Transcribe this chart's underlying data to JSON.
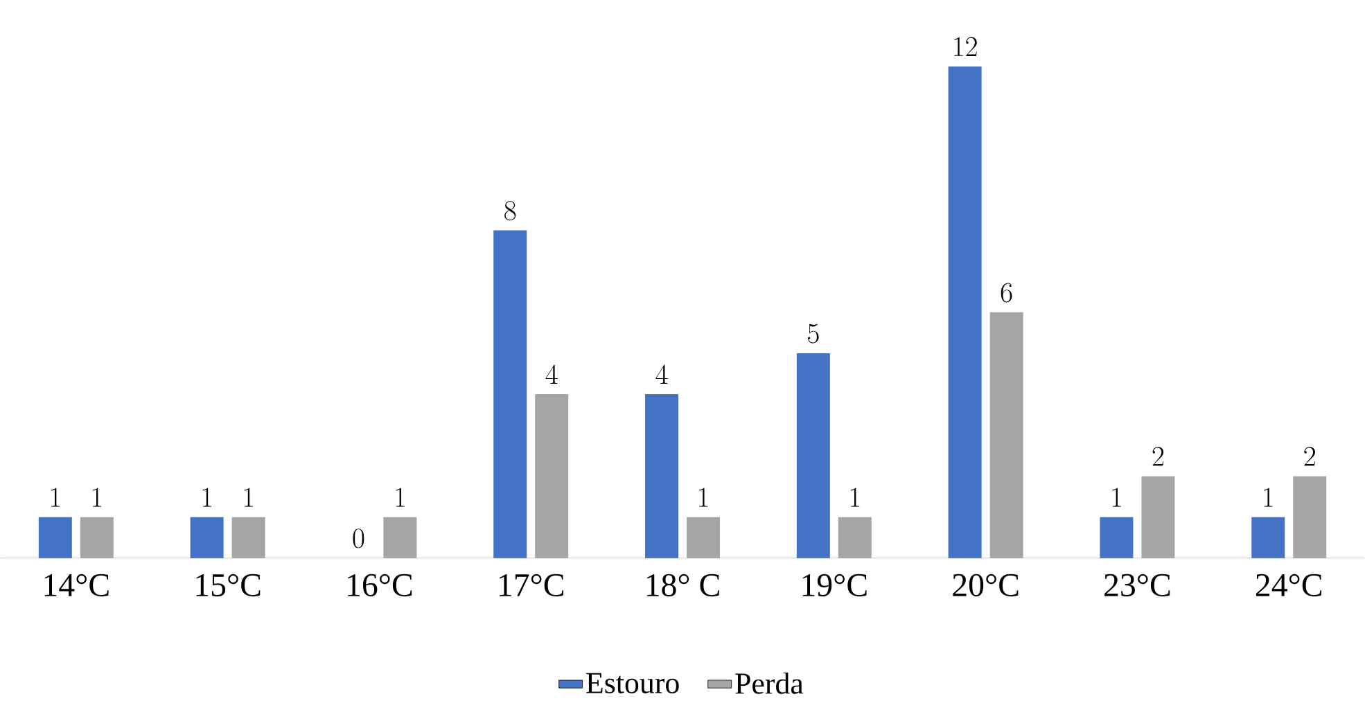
{
  "chart_data": {
    "type": "bar",
    "categories": [
      "14°C",
      "15°C",
      "16°C",
      "17°C",
      "18° C",
      "19°C",
      "20°C",
      "23°C",
      "24°C"
    ],
    "series": [
      {
        "name": "Estouro",
        "color": "#4472c4",
        "values": [
          1,
          1,
          0,
          8,
          4,
          5,
          12,
          1,
          1
        ]
      },
      {
        "name": "Perda",
        "color": "#a5a5a5",
        "values": [
          1,
          1,
          1,
          4,
          1,
          1,
          6,
          2,
          2
        ]
      }
    ],
    "data_labels": true,
    "legend": "bottom"
  }
}
